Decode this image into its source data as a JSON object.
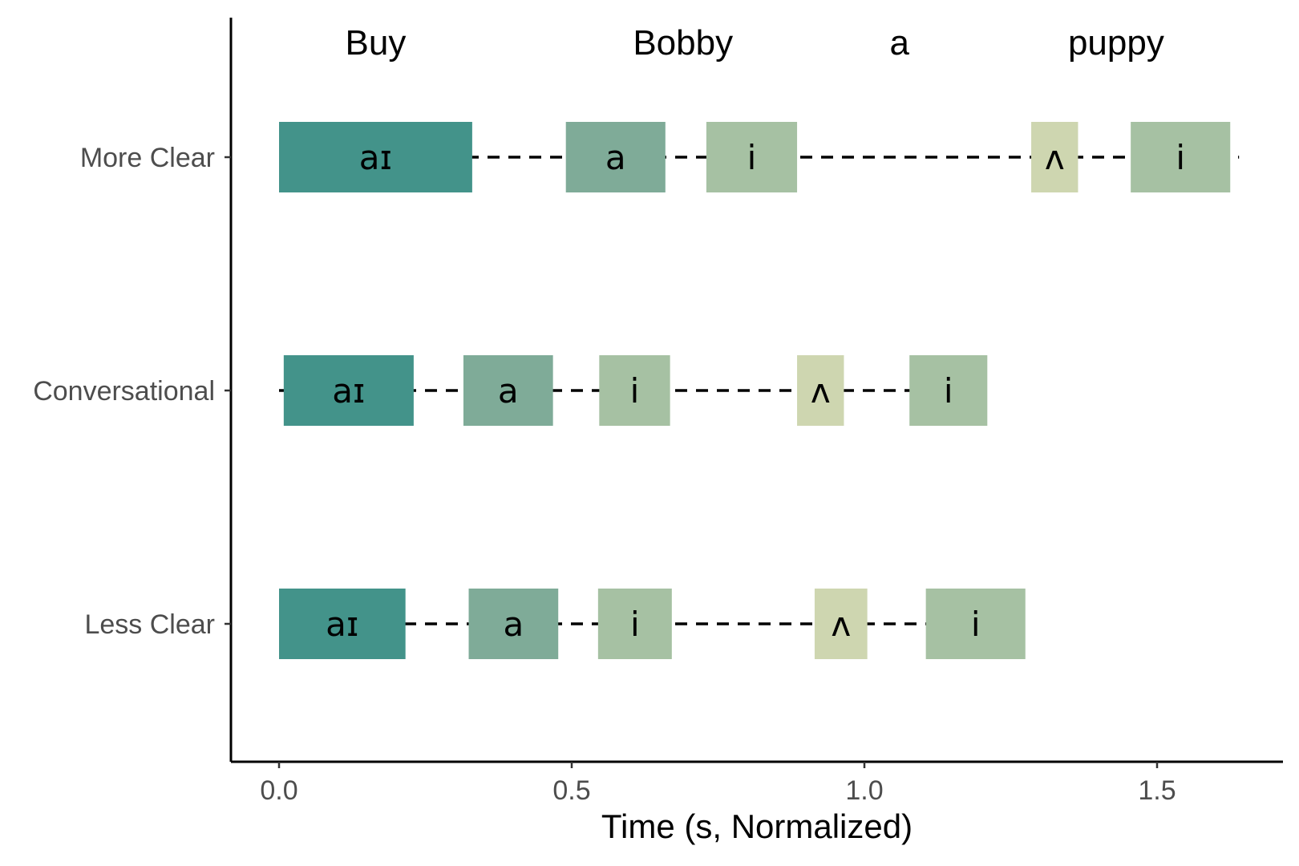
{
  "chart_data": {
    "type": "timeline",
    "xlabel": "Time (s, Normalized)",
    "xlim": [
      -0.08,
      1.72
    ],
    "x_ticks": [
      {
        "value": 0.0,
        "label": "0.0"
      },
      {
        "value": 0.5,
        "label": "0.5"
      },
      {
        "value": 1.0,
        "label": "1.0"
      },
      {
        "value": 1.5,
        "label": "1.5"
      }
    ],
    "categories": [
      "More Clear",
      "Conversational",
      "Less Clear"
    ],
    "words": [
      {
        "text": "Buy",
        "x": 0.165
      },
      {
        "text": "Bobby",
        "x": 0.69
      },
      {
        "text": "a",
        "x": 1.06
      },
      {
        "text": "puppy",
        "x": 1.43
      }
    ],
    "phone_colors": {
      "aɪ": "#43938a",
      "a": "#7fab98",
      "i": "#a6c1a3",
      "ʌ": "#ced6b0"
    },
    "line_color": "#000000",
    "series": [
      {
        "condition": "More Clear",
        "line_range": [
          0.0,
          1.64
        ],
        "segments": [
          {
            "phone": "aɪ",
            "start": 0.0,
            "end": 0.33
          },
          {
            "phone": "a",
            "start": 0.49,
            "end": 0.66
          },
          {
            "phone": "i",
            "start": 0.73,
            "end": 0.885
          },
          {
            "phone": "ʌ",
            "start": 1.285,
            "end": 1.365
          },
          {
            "phone": "i",
            "start": 1.455,
            "end": 1.625
          }
        ]
      },
      {
        "condition": "Conversational",
        "line_range": [
          0.0,
          1.21
        ],
        "segments": [
          {
            "phone": "aɪ",
            "start": 0.008,
            "end": 0.23
          },
          {
            "phone": "a",
            "start": 0.315,
            "end": 0.468
          },
          {
            "phone": "i",
            "start": 0.547,
            "end": 0.668
          },
          {
            "phone": "ʌ",
            "start": 0.885,
            "end": 0.965
          },
          {
            "phone": "i",
            "start": 1.077,
            "end": 1.21
          }
        ]
      },
      {
        "condition": "Less Clear",
        "line_range": [
          0.0,
          1.27
        ],
        "segments": [
          {
            "phone": "aɪ",
            "start": 0.0,
            "end": 0.216
          },
          {
            "phone": "a",
            "start": 0.324,
            "end": 0.477
          },
          {
            "phone": "i",
            "start": 0.545,
            "end": 0.671
          },
          {
            "phone": "ʌ",
            "start": 0.915,
            "end": 1.005
          },
          {
            "phone": "i",
            "start": 1.105,
            "end": 1.275
          }
        ]
      }
    ]
  }
}
